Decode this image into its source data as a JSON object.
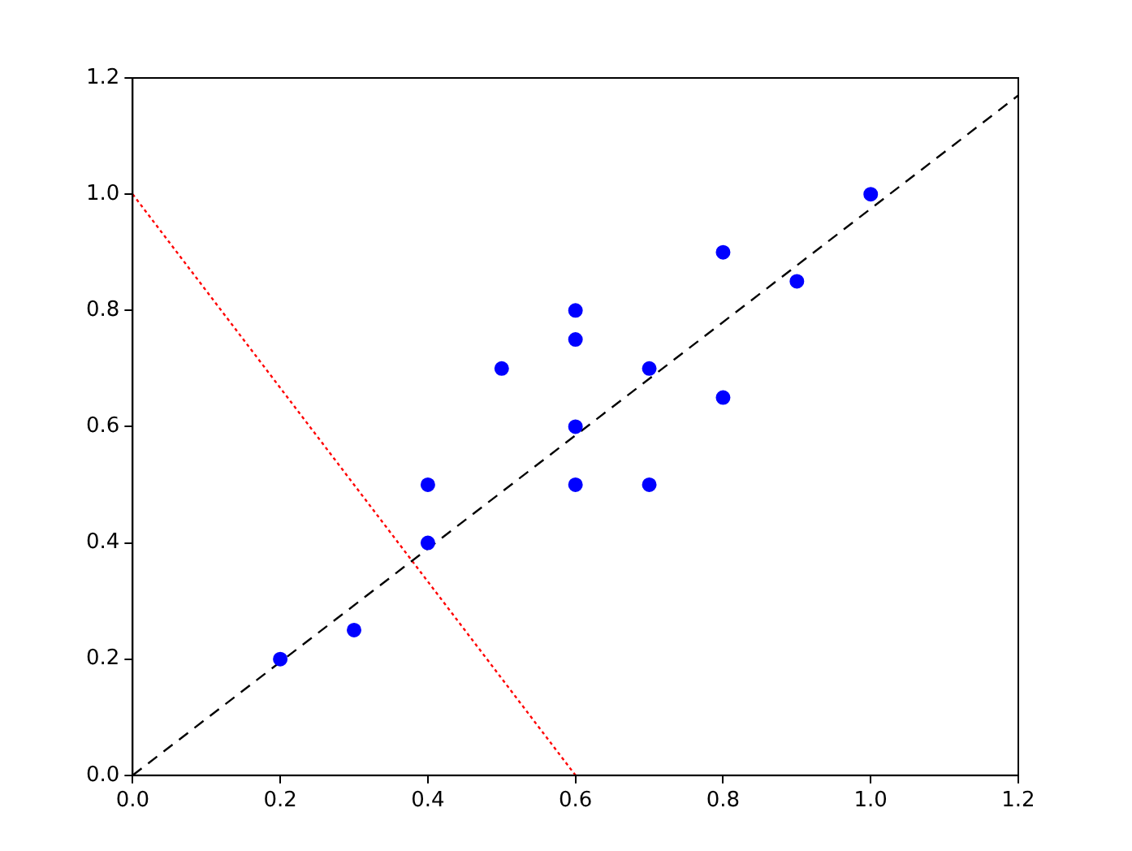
{
  "chart_data": {
    "type": "scatter",
    "xlim": [
      0,
      1.2
    ],
    "ylim": [
      0,
      1.2
    ],
    "xticks": [
      {
        "value": 0,
        "label": "0.0"
      },
      {
        "value": 0.2,
        "label": "0.2"
      },
      {
        "value": 0.4,
        "label": "0.4"
      },
      {
        "value": 0.6,
        "label": "0.6"
      },
      {
        "value": 0.8,
        "label": "0.8"
      },
      {
        "value": 1,
        "label": "1.0"
      },
      {
        "value": 1.2,
        "label": "1.2"
      }
    ],
    "yticks": [
      {
        "value": 0,
        "label": "0.0"
      },
      {
        "value": 0.2,
        "label": "0.2"
      },
      {
        "value": 0.4,
        "label": "0.4"
      },
      {
        "value": 0.6,
        "label": "0.6"
      },
      {
        "value": 0.8,
        "label": "0.8"
      },
      {
        "value": 1,
        "label": "1.0"
      },
      {
        "value": 1.2,
        "label": "1.2"
      }
    ],
    "grid": false,
    "legend": false,
    "series": [
      {
        "type": "scatter",
        "color": "#0000ff",
        "marker": "circle",
        "x": [
          0.2,
          0.3,
          0.4,
          0.4,
          0.5,
          0.6,
          0.6,
          0.6,
          0.6,
          0.7,
          0.7,
          0.8,
          0.8,
          0.9,
          1.0
        ],
        "values": [
          0.2,
          0.25,
          0.4,
          0.5,
          0.7,
          0.8,
          0.75,
          0.6,
          0.5,
          0.7,
          0.5,
          0.9,
          0.65,
          0.85,
          1.0
        ]
      },
      {
        "type": "line",
        "color": "#000000",
        "line_style": "dashed",
        "marker": "none",
        "x": [
          0,
          1.2
        ],
        "values": [
          0,
          1.17
        ]
      },
      {
        "type": "line",
        "color": "#ff0000",
        "line_style": "dotted",
        "marker": "none",
        "x": [
          0,
          0.6
        ],
        "values": [
          1,
          0
        ]
      }
    ]
  }
}
